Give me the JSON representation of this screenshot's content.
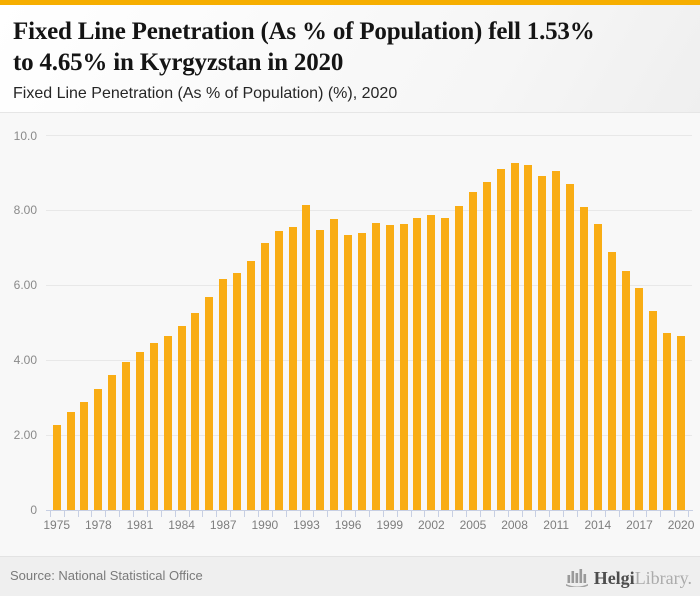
{
  "colors": {
    "accent_bar": "#F6AE00",
    "bar": "#F9AD14",
    "axis": "#c7cfe3",
    "gridline": "#e8e8e8"
  },
  "header": {
    "title": "Fixed Line Penetration (As % of Population) fell 1.53%\nto 4.65% in Kyrgyzstan in 2020",
    "subtitle": "Fixed Line Penetration (As % of Population) (%), 2020"
  },
  "chart_data": {
    "type": "bar",
    "title": "Fixed Line Penetration (As % of Population) fell 1.53% to 4.65% in Kyrgyzstan in 2020",
    "subtitle": "Fixed Line Penetration (As % of Population) (%), 2020",
    "xlabel": "",
    "ylabel": "",
    "ylim": [
      0,
      10
    ],
    "grid": true,
    "legend": false,
    "x": [
      1975,
      1976,
      1977,
      1978,
      1979,
      1980,
      1981,
      1982,
      1983,
      1984,
      1985,
      1986,
      1987,
      1988,
      1989,
      1990,
      1991,
      1992,
      1993,
      1994,
      1995,
      1996,
      1997,
      1998,
      1999,
      2000,
      2001,
      2002,
      2003,
      2004,
      2005,
      2006,
      2007,
      2008,
      2009,
      2010,
      2011,
      2012,
      2013,
      2014,
      2015,
      2016,
      2017,
      2018,
      2019,
      2020
    ],
    "values": [
      2.28,
      2.62,
      2.88,
      3.24,
      3.6,
      3.96,
      4.23,
      4.47,
      4.64,
      4.91,
      5.25,
      5.7,
      6.18,
      6.32,
      6.65,
      7.14,
      7.45,
      7.55,
      8.14,
      7.48,
      7.76,
      7.35,
      7.4,
      7.66,
      7.6,
      7.64,
      7.8,
      7.87,
      7.79,
      8.13,
      8.49,
      8.76,
      9.1,
      9.26,
      9.22,
      8.93,
      9.06,
      8.7,
      8.08,
      7.64,
      6.88,
      6.37,
      5.92,
      5.31,
      4.72,
      4.65
    ],
    "ytick_values": [
      0,
      2,
      4,
      6,
      8,
      10
    ],
    "ytick_labels": [
      "0",
      "2.00",
      "4.00",
      "6.00",
      "8.00",
      "10.0"
    ],
    "xtick_labels": [
      "1975",
      "1978",
      "1981",
      "1984",
      "1987",
      "1990",
      "1993",
      "1996",
      "1999",
      "2002",
      "2005",
      "2008",
      "2011",
      "2014",
      "2017",
      "2020"
    ]
  },
  "footer": {
    "source": "Source: National Statistical Office",
    "logo_bold": "Helgi",
    "logo_light": "Library."
  }
}
